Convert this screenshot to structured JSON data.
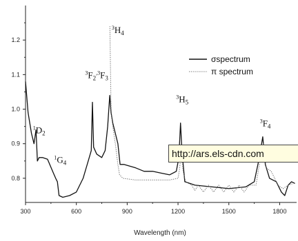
{
  "chart_data": {
    "type": "line",
    "title": "",
    "xlabel": "Wavelength (nm)",
    "ylabel": "",
    "xlim": [
      300,
      1900
    ],
    "ylim": [
      0.73,
      1.3
    ],
    "x_ticks": [
      {
        "value": 300,
        "label": "300"
      },
      {
        "value": 600,
        "label": "600"
      },
      {
        "value": 900,
        "label": "900"
      },
      {
        "value": 1200,
        "label": "1200"
      },
      {
        "value": 1500,
        "label": "1500"
      },
      {
        "value": 1800,
        "label": "1800"
      }
    ],
    "y_ticks": [
      {
        "value": 0.8,
        "label": "0.8"
      },
      {
        "value": 0.9,
        "label": "0.9"
      },
      {
        "value": 1.0,
        "label": "1.0"
      },
      {
        "value": 1.1,
        "label": "1.1"
      },
      {
        "value": 1.2,
        "label": "1.2"
      }
    ],
    "legend": {
      "position": "top-right",
      "entries": [
        {
          "label": "σspectrum",
          "style": "solid"
        },
        {
          "label": "π spectrum",
          "style": "dotted"
        }
      ]
    },
    "series": [
      {
        "name": "σspectrum",
        "style": "solid",
        "points": [
          [
            300,
            1.08
          ],
          [
            315,
            0.99
          ],
          [
            335,
            0.93
          ],
          [
            350,
            0.9
          ],
          [
            362,
            0.94
          ],
          [
            370,
            0.85
          ],
          [
            380,
            0.86
          ],
          [
            400,
            0.86
          ],
          [
            430,
            0.855
          ],
          [
            460,
            0.82
          ],
          [
            478,
            0.8
          ],
          [
            488,
            0.79
          ],
          [
            498,
            0.75
          ],
          [
            520,
            0.745
          ],
          [
            560,
            0.75
          ],
          [
            600,
            0.76
          ],
          [
            640,
            0.8
          ],
          [
            670,
            0.85
          ],
          [
            688,
            0.88
          ],
          [
            695,
            1.02
          ],
          [
            702,
            0.89
          ],
          [
            720,
            0.87
          ],
          [
            750,
            0.86
          ],
          [
            770,
            0.88
          ],
          [
            785,
            0.95
          ],
          [
            797,
            1.04
          ],
          [
            805,
            0.99
          ],
          [
            815,
            0.96
          ],
          [
            830,
            0.93
          ],
          [
            845,
            0.9
          ],
          [
            858,
            0.84
          ],
          [
            880,
            0.84
          ],
          [
            950,
            0.83
          ],
          [
            1000,
            0.82
          ],
          [
            1050,
            0.82
          ],
          [
            1100,
            0.815
          ],
          [
            1150,
            0.81
          ],
          [
            1190,
            0.82
          ],
          [
            1205,
            0.86
          ],
          [
            1215,
            0.96
          ],
          [
            1223,
            0.88
          ],
          [
            1240,
            0.79
          ],
          [
            1300,
            0.78
          ],
          [
            1400,
            0.775
          ],
          [
            1500,
            0.77
          ],
          [
            1600,
            0.775
          ],
          [
            1650,
            0.79
          ],
          [
            1680,
            0.86
          ],
          [
            1700,
            0.92
          ],
          [
            1715,
            0.84
          ],
          [
            1740,
            0.8
          ],
          [
            1780,
            0.79
          ],
          [
            1810,
            0.76
          ],
          [
            1830,
            0.75
          ],
          [
            1850,
            0.78
          ],
          [
            1870,
            0.79
          ],
          [
            1890,
            0.785
          ]
        ]
      },
      {
        "name": "π spectrum",
        "style": "dotted",
        "points": [
          [
            798,
            1.24
          ],
          [
            805,
            1.0
          ],
          [
            815,
            0.95
          ],
          [
            830,
            0.9
          ],
          [
            845,
            0.84
          ],
          [
            855,
            0.81
          ],
          [
            875,
            0.8
          ],
          [
            950,
            0.795
          ],
          [
            1050,
            0.795
          ],
          [
            1150,
            0.795
          ],
          [
            1200,
            0.8
          ],
          [
            1210,
            0.83
          ],
          [
            1220,
            0.88
          ],
          [
            1230,
            0.82
          ],
          [
            1245,
            0.79
          ],
          [
            1280,
            0.78
          ],
          [
            1300,
            0.765
          ],
          [
            1320,
            0.78
          ],
          [
            1350,
            0.76
          ],
          [
            1380,
            0.78
          ],
          [
            1410,
            0.76
          ],
          [
            1440,
            0.78
          ],
          [
            1470,
            0.76
          ],
          [
            1500,
            0.78
          ],
          [
            1530,
            0.76
          ],
          [
            1560,
            0.78
          ],
          [
            1590,
            0.76
          ],
          [
            1620,
            0.78
          ],
          [
            1660,
            0.78
          ],
          [
            1690,
            0.87
          ],
          [
            1705,
            0.9
          ],
          [
            1720,
            0.83
          ],
          [
            1750,
            0.82
          ],
          [
            1790,
            0.78
          ],
          [
            1820,
            0.77
          ],
          [
            1850,
            0.78
          ],
          [
            1880,
            0.785
          ]
        ]
      }
    ],
    "annotations": [
      {
        "id": "1D2",
        "main": "1",
        "sub": "D",
        "tail": "2",
        "x": 380,
        "y": 0.93
      },
      {
        "id": "1G4",
        "main": "1",
        "sub": "G",
        "tail": "4",
        "x": 505,
        "y": 0.845
      },
      {
        "id": "3F23F3",
        "main": "3",
        "sub": "F",
        "tail": "2",
        "main2": ",3",
        "sub2": "F",
        "tail2": "3",
        "x": 720,
        "y": 1.09
      },
      {
        "id": "3H4",
        "main": "3",
        "sub": "H",
        "tail": "4",
        "x": 845,
        "y": 1.22
      },
      {
        "id": "3H5",
        "main": "3",
        "sub": "H",
        "tail": "5",
        "x": 1225,
        "y": 1.02
      },
      {
        "id": "3F4",
        "main": "3",
        "sub": "F",
        "tail": "4",
        "x": 1715,
        "y": 0.95
      }
    ]
  },
  "tooltip": {
    "text": "http://ars.els-cdn.com"
  }
}
